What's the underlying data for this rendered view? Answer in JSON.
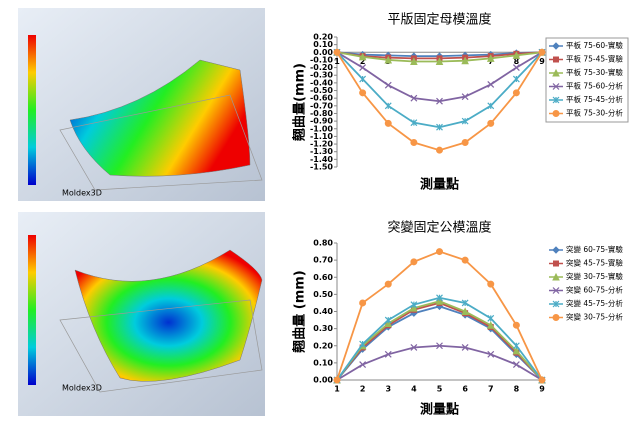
{
  "images": [
    {
      "logo": "Moldex3D"
    },
    {
      "logo": "Moldex3D"
    }
  ],
  "chart_data": [
    {
      "type": "line",
      "title": "平版固定母模溫度",
      "x_label": "測量點",
      "y_label": "翹曲量(mm)",
      "legend": "right",
      "grid": false,
      "categories": [
        "1",
        "2",
        "3",
        "4",
        "5",
        "6",
        "7",
        "8",
        "9"
      ],
      "ylim": [
        -1.5,
        0.2
      ],
      "yticks": [
        {
          "value": 0.2,
          "label": "0.20"
        },
        {
          "value": 0.1,
          "label": "0.10"
        },
        {
          "value": 0,
          "label": "0.00"
        },
        {
          "value": -0.1,
          "label": "-0.10"
        },
        {
          "value": -0.2,
          "label": "-0.20"
        },
        {
          "value": -0.3,
          "label": "-0.30"
        },
        {
          "value": -0.4,
          "label": "-0.40"
        },
        {
          "value": -0.5,
          "label": "-0.50"
        },
        {
          "value": -0.6,
          "label": "-0.60"
        },
        {
          "value": -0.7,
          "label": "-0.70"
        },
        {
          "value": -0.8,
          "label": "-0.80"
        },
        {
          "value": -0.9,
          "label": "-0.90"
        },
        {
          "value": -1.0,
          "label": "-1.00"
        },
        {
          "value": -1.1,
          "label": "-1.10"
        },
        {
          "value": -1.2,
          "label": "-1.20"
        },
        {
          "value": -1.3,
          "label": "-1.30"
        },
        {
          "value": -1.4,
          "label": "-1.40"
        },
        {
          "value": -1.5,
          "label": "-1.50"
        }
      ],
      "series": [
        {
          "name": "平板 75-60-實驗",
          "color": "#4f81bd",
          "marker": "diamond",
          "values": [
            0,
            -0.03,
            -0.04,
            -0.05,
            -0.05,
            -0.04,
            -0.03,
            -0.01,
            0
          ]
        },
        {
          "name": "平板 75-45-實驗",
          "color": "#c0504d",
          "marker": "square",
          "values": [
            0,
            -0.05,
            -0.07,
            -0.08,
            -0.08,
            -0.07,
            -0.05,
            -0.02,
            0
          ]
        },
        {
          "name": "平板 75-30-實驗",
          "color": "#9bbb59",
          "marker": "triangle",
          "values": [
            0,
            -0.06,
            -0.1,
            -0.12,
            -0.12,
            -0.11,
            -0.08,
            -0.04,
            0
          ]
        },
        {
          "name": "平板 75-60-分析",
          "color": "#8064a2",
          "marker": "x",
          "values": [
            0,
            -0.2,
            -0.43,
            -0.6,
            -0.64,
            -0.58,
            -0.42,
            -0.2,
            0
          ]
        },
        {
          "name": "平板 75-45-分析",
          "color": "#4bacc6",
          "marker": "star",
          "values": [
            0,
            -0.35,
            -0.7,
            -0.92,
            -0.98,
            -0.9,
            -0.7,
            -0.35,
            0
          ]
        },
        {
          "name": "平板 75-30-分析",
          "color": "#f79646",
          "marker": "circle",
          "values": [
            0,
            -0.53,
            -0.93,
            -1.18,
            -1.28,
            -1.18,
            -0.93,
            -0.53,
            0
          ]
        }
      ]
    },
    {
      "type": "line",
      "title": "突變固定公模溫度",
      "x_label": "測量點",
      "y_label": "翹曲量 (mm)",
      "legend": "right",
      "grid": false,
      "categories": [
        "1",
        "2",
        "3",
        "4",
        "5",
        "6",
        "7",
        "8",
        "9"
      ],
      "ylim": [
        0,
        0.8
      ],
      "yticks": [
        {
          "value": 0,
          "label": "0.00"
        },
        {
          "value": 0.1,
          "label": "0.10"
        },
        {
          "value": 0.2,
          "label": "0.20"
        },
        {
          "value": 0.3,
          "label": "0.30"
        },
        {
          "value": 0.4,
          "label": "0.40"
        },
        {
          "value": 0.5,
          "label": "0.50"
        },
        {
          "value": 0.6,
          "label": "0.60"
        },
        {
          "value": 0.7,
          "label": "0.70"
        },
        {
          "value": 0.8,
          "label": "0.80"
        }
      ],
      "series": [
        {
          "name": "突變 60-75-實驗",
          "color": "#4f81bd",
          "marker": "diamond",
          "values": [
            0,
            0.18,
            0.31,
            0.39,
            0.43,
            0.38,
            0.3,
            0.15,
            0
          ]
        },
        {
          "name": "突變 45-75-實驗",
          "color": "#c0504d",
          "marker": "square",
          "values": [
            0,
            0.19,
            0.32,
            0.41,
            0.45,
            0.39,
            0.31,
            0.16,
            0
          ]
        },
        {
          "name": "突變 30-75-實驗",
          "color": "#9bbb59",
          "marker": "triangle",
          "values": [
            0,
            0.2,
            0.33,
            0.42,
            0.46,
            0.4,
            0.32,
            0.17,
            0
          ]
        },
        {
          "name": "突變 60-75-分析",
          "color": "#8064a2",
          "marker": "x",
          "values": [
            0,
            0.09,
            0.15,
            0.19,
            0.2,
            0.19,
            0.15,
            0.09,
            0
          ]
        },
        {
          "name": "突變 45-75-分析",
          "color": "#4bacc6",
          "marker": "star",
          "values": [
            0,
            0.21,
            0.35,
            0.44,
            0.48,
            0.45,
            0.36,
            0.2,
            0
          ]
        },
        {
          "name": "突變 30-75-分析",
          "color": "#f79646",
          "marker": "circle",
          "values": [
            0,
            0.45,
            0.56,
            0.69,
            0.75,
            0.7,
            0.56,
            0.32,
            0
          ]
        }
      ]
    }
  ]
}
